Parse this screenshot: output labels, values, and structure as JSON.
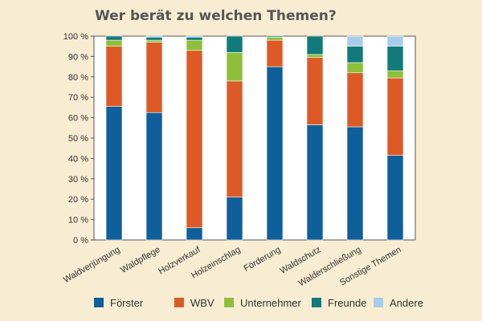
{
  "chart_data": {
    "type": "bar",
    "stacked": true,
    "title": "Wer berät zu welchen Themen?",
    "xlabel": "",
    "ylabel": "",
    "ylim": [
      0,
      100
    ],
    "yticks": [
      "0 %",
      "10 %",
      "20 %",
      "30 %",
      "40 %",
      "50 %",
      "60 %",
      "70 %",
      "80 %",
      "90 %",
      "100 %"
    ],
    "grid": false,
    "legend_position": "bottom",
    "categories": [
      "Waldverjüngung",
      "Waldpflege",
      "Holzverkauf",
      "Holzeinschlag",
      "Förderung",
      "Waldschutz",
      "Walderschließung",
      "Sonstige Themen"
    ],
    "series": [
      {
        "name": "Förster",
        "color": "#0f5f9b",
        "values": [
          65.5,
          62.5,
          6,
          21,
          85,
          56.5,
          55.5,
          41.5
        ]
      },
      {
        "name": "WBV",
        "color": "#dd5a26",
        "values": [
          29.5,
          34.5,
          87,
          57,
          13,
          33,
          26.5,
          38
        ]
      },
      {
        "name": "Unternehmer",
        "color": "#8ebf3a",
        "values": [
          3,
          1,
          5,
          14,
          1.5,
          1.5,
          5,
          3.5
        ]
      },
      {
        "name": "Freunde",
        "color": "#127a7a",
        "values": [
          2,
          1.5,
          1.5,
          8,
          0.5,
          9,
          8,
          12
        ]
      },
      {
        "name": "Andere",
        "color": "#a7cdea",
        "values": [
          0,
          0.5,
          0.5,
          0,
          0,
          0,
          5,
          5
        ]
      }
    ]
  }
}
